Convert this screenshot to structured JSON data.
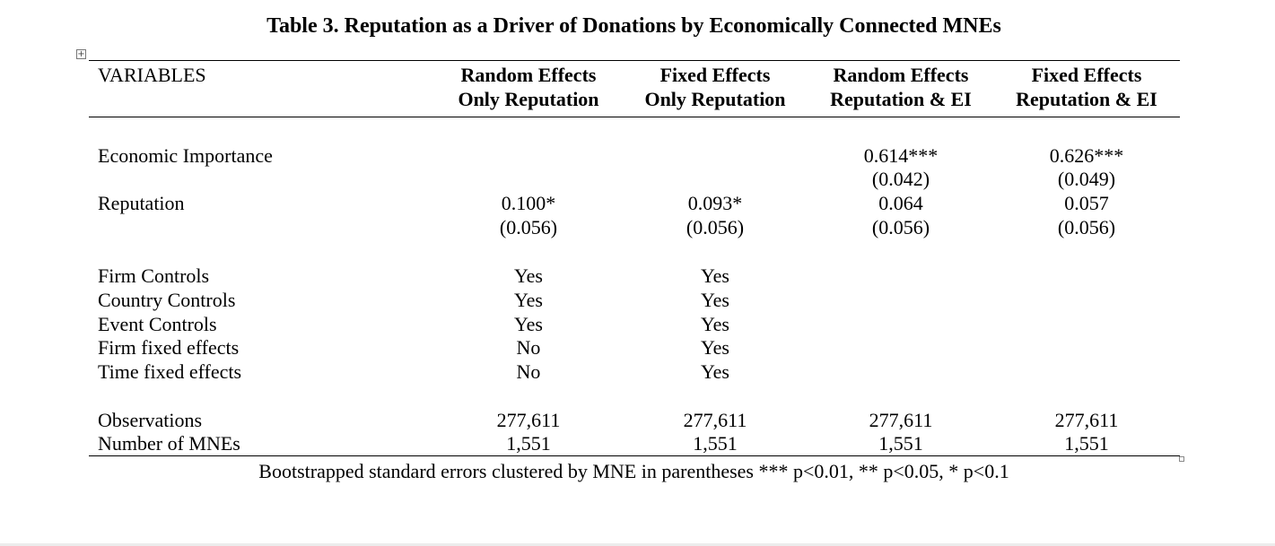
{
  "title": "Table 3. Reputation as a Driver of Donations by Economically Connected MNEs",
  "header": {
    "variables_label": "VARIABLES",
    "columns": [
      {
        "line1": "Random Effects",
        "line2": "Only Reputation"
      },
      {
        "line1": "Fixed Effects",
        "line2": "Only Reputation"
      },
      {
        "line1": "Random Effects",
        "line2": "Reputation & EI"
      },
      {
        "line1": "Fixed Effects",
        "line2": "Reputation & EI"
      }
    ]
  },
  "rows": {
    "economic_importance": {
      "label": "Economic Importance",
      "values": [
        "",
        "",
        "0.614***",
        "0.626***"
      ]
    },
    "economic_importance_se": {
      "label": "",
      "values": [
        "",
        "",
        "(0.042)",
        "(0.049)"
      ]
    },
    "reputation": {
      "label": "Reputation",
      "values": [
        "0.100*",
        "0.093*",
        "0.064",
        "0.057"
      ]
    },
    "reputation_se": {
      "label": "",
      "values": [
        "(0.056)",
        "(0.056)",
        "(0.056)",
        "(0.056)"
      ]
    },
    "firm_controls": {
      "label": "Firm Controls",
      "values": [
        "Yes",
        "Yes",
        "",
        ""
      ]
    },
    "country_controls": {
      "label": "Country Controls",
      "values": [
        "Yes",
        "Yes",
        "",
        ""
      ]
    },
    "event_controls": {
      "label": "Event Controls",
      "values": [
        "Yes",
        "Yes",
        "",
        ""
      ]
    },
    "firm_fixed_effects": {
      "label": "Firm fixed effects",
      "values": [
        "No",
        "Yes",
        "",
        ""
      ]
    },
    "time_fixed_effects": {
      "label": "Time fixed effects",
      "values": [
        "No",
        "Yes",
        "",
        ""
      ]
    },
    "observations": {
      "label": "Observations",
      "values": [
        "277,611",
        "277,611",
        "277,611",
        "277,611"
      ]
    },
    "number_of_mnes": {
      "label": "Number of MNEs",
      "values": [
        "1,551",
        "1,551",
        "1,551",
        "1,551"
      ]
    }
  },
  "note": "Bootstrapped standard errors clustered by MNE in parentheses *** p<0.01, ** p<0.05, * p<0.1",
  "icons": {
    "table_handle": "table-move-handle-icon",
    "resize_handle": "table-resize-handle-icon"
  }
}
